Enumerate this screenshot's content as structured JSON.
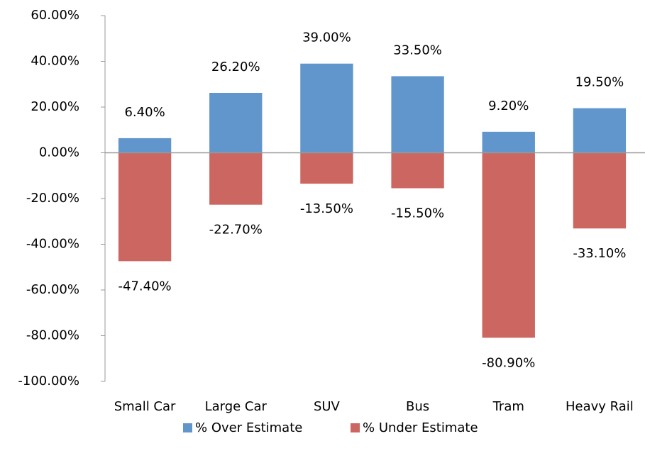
{
  "chart_data": {
    "type": "bar",
    "categories": [
      "Small Car",
      "Large Car",
      "SUV",
      "Bus",
      "Tram",
      "Heavy Rail"
    ],
    "series": [
      {
        "name": "% Over Estimate",
        "color": "#6096cb",
        "values": [
          6.4,
          26.2,
          39.0,
          33.5,
          9.2,
          19.5
        ],
        "value_labels": [
          "6.40%",
          "26.20%",
          "39.00%",
          "33.50%",
          "9.20%",
          "19.50%"
        ]
      },
      {
        "name": "% Under Estimate",
        "color": "#cc6660",
        "values": [
          -47.4,
          -22.7,
          -13.5,
          -15.5,
          -80.9,
          -33.1
        ],
        "value_labels": [
          "-47.40%",
          "-22.70%",
          "-13.50%",
          "-15.50%",
          "-80.90%",
          "-33.10%"
        ]
      }
    ],
    "ylim": [
      -100,
      60
    ],
    "yticks": [
      {
        "value": -100,
        "label": "-100.00%"
      },
      {
        "value": -80,
        "label": "-80.00%"
      },
      {
        "value": -60,
        "label": "-60.00%"
      },
      {
        "value": -40,
        "label": "-40.00%"
      },
      {
        "value": -20,
        "label": "-20.00%"
      },
      {
        "value": 0,
        "label": "0.00%"
      },
      {
        "value": 20,
        "label": "20.00%"
      },
      {
        "value": 40,
        "label": "40.00%"
      },
      {
        "value": 60,
        "label": "60.00%"
      }
    ],
    "stacked": true,
    "legend": "bottom",
    "grid": false
  }
}
